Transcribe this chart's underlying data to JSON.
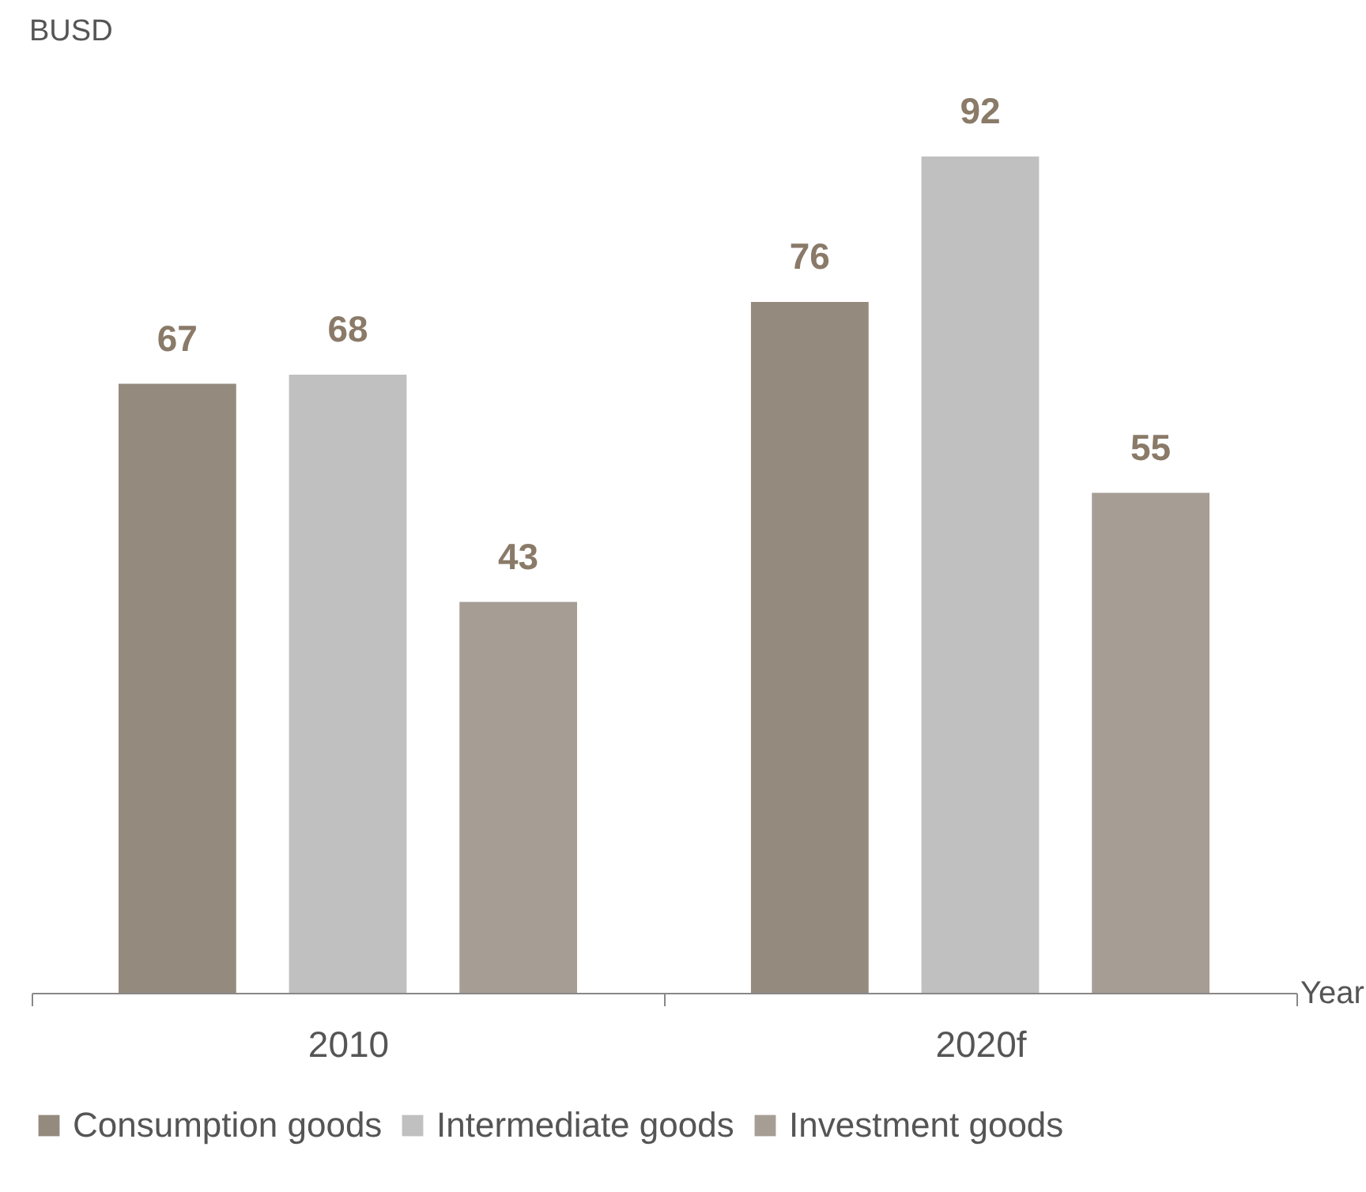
{
  "chart_data": {
    "type": "bar",
    "ylabel": "BUSD",
    "xlabel": "Year",
    "categories": [
      "2010",
      "2020f"
    ],
    "series": [
      {
        "name": "Consumption goods",
        "color": "#948a7e",
        "values": [
          67,
          76
        ]
      },
      {
        "name": "Intermediate goods",
        "color": "#c0c0c0",
        "values": [
          68,
          92
        ]
      },
      {
        "name": "Investment goods",
        "color": "#a69d94",
        "values": [
          43,
          55
        ]
      }
    ],
    "tick_labels": "x",
    "data_labels": true,
    "legend": "bottom",
    "grid": false
  }
}
